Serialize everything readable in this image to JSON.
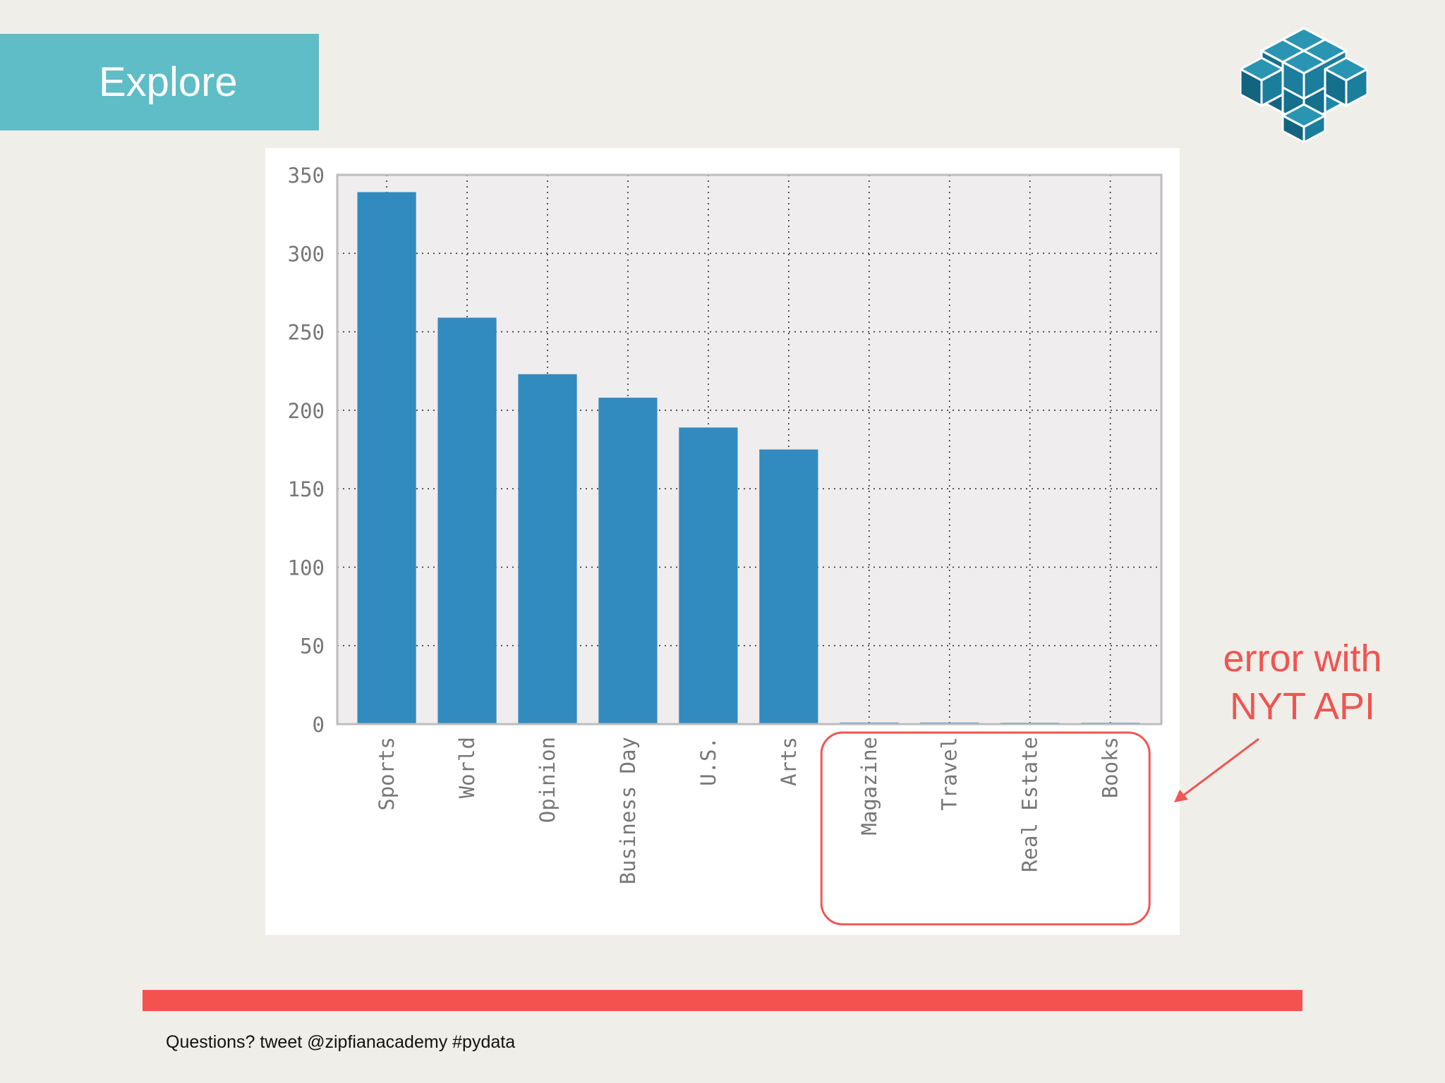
{
  "slide": {
    "title": "Explore",
    "callout": [
      "error with",
      "NYT API"
    ],
    "footer": "Questions? tweet @zipfianacademy #pydata",
    "accent_color": "#f4524f",
    "title_color": "#5ebdc6",
    "logo_icon": "isometric-cube-knot-logo-icon"
  },
  "chart_data": {
    "type": "bar",
    "categories": [
      "Sports",
      "World",
      "Opinion",
      "Business Day",
      "U.S.",
      "Arts",
      "Magazine",
      "Travel",
      "Real Estate",
      "Books"
    ],
    "values": [
      339,
      259,
      223,
      208,
      189,
      175,
      1,
      1,
      0,
      0
    ],
    "yticks": [
      "0",
      "50",
      "100",
      "150",
      "200",
      "250",
      "300",
      "350"
    ],
    "ylim": [
      0,
      350
    ],
    "title": "",
    "xlabel": "",
    "ylabel": "",
    "grid": true,
    "bar_color": "#318bbf",
    "highlight_categories": [
      "Magazine",
      "Travel",
      "Real Estate",
      "Books"
    ],
    "highlight_color": "#ef5654"
  }
}
